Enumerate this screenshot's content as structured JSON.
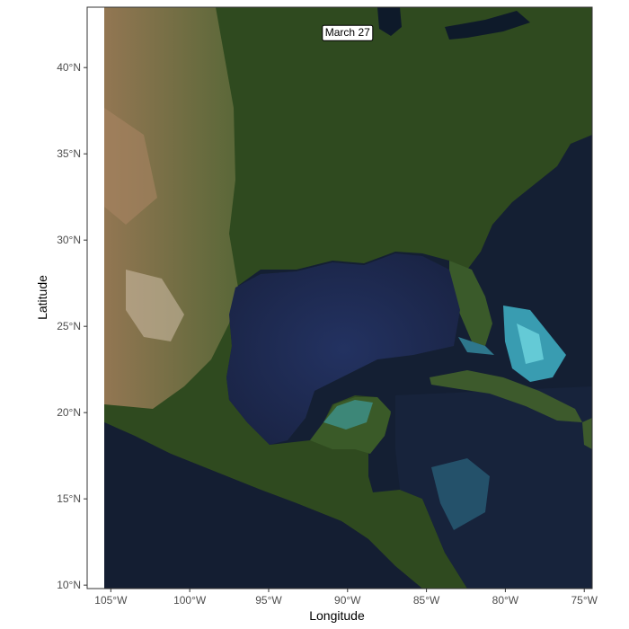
{
  "map": {
    "date_label": "March 27",
    "xlabel": "Longitude",
    "ylabel": "Latitude",
    "xlim": [
      -106.5,
      -74.5
    ],
    "ylim": [
      9.8,
      43.5
    ],
    "image_lon_range": [
      -105.6,
      -74.5
    ],
    "x_ticks": [
      {
        "value": -105,
        "label": "105°W"
      },
      {
        "value": -100,
        "label": "100°W"
      },
      {
        "value": -95,
        "label": "95°W"
      },
      {
        "value": -90,
        "label": "90°W"
      },
      {
        "value": -85,
        "label": "85°W"
      },
      {
        "value": -80,
        "label": "80°W"
      },
      {
        "value": -75,
        "label": "75°W"
      }
    ],
    "y_ticks": [
      {
        "value": 10,
        "label": "10°N"
      },
      {
        "value": 15,
        "label": "15°N"
      },
      {
        "value": 20,
        "label": "20°N"
      },
      {
        "value": 25,
        "label": "25°N"
      },
      {
        "value": 30,
        "label": "30°N"
      },
      {
        "value": 35,
        "label": "35°N"
      },
      {
        "value": 40,
        "label": "40°N"
      }
    ],
    "label_lon": -90,
    "label_lat": 42,
    "colors": {
      "land_forest": "#2f4a1f",
      "land_dry": "#8a6a48",
      "ocean_deep": "#141f33",
      "gulf": "#1f2c4f",
      "shallow": "#3fb3c8",
      "border": "#333333"
    }
  }
}
